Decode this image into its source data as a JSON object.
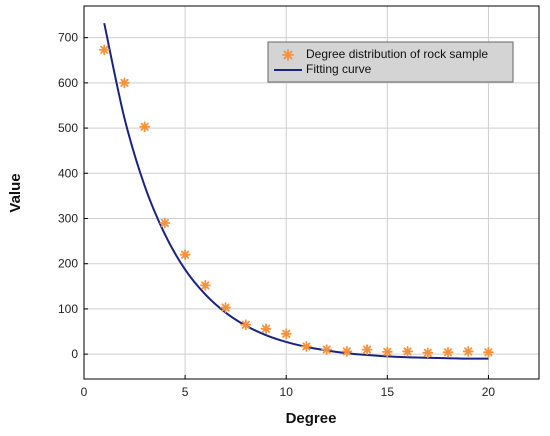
{
  "chart_data": {
    "type": "scatter",
    "xlabel": "Degree",
    "ylabel": "Value",
    "xlim": [
      0,
      22.5
    ],
    "ylim": [
      -55,
      770
    ],
    "xticks": [
      0,
      5,
      10,
      15,
      20
    ],
    "yticks": [
      0,
      100,
      200,
      300,
      400,
      500,
      600,
      700
    ],
    "grid": true,
    "legend_position": "top-right",
    "series": [
      {
        "name": "Degree distribution of rock sample",
        "kind": "scatter",
        "marker": "asterisk",
        "color": "#f5923e",
        "x": [
          1,
          2,
          3,
          4,
          5,
          6,
          7,
          8,
          9,
          10,
          11,
          12,
          13,
          14,
          15,
          16,
          17,
          18,
          19,
          20
        ],
        "y": [
          673,
          600,
          503,
          290,
          220,
          152,
          103,
          65,
          56,
          45,
          17,
          10,
          6,
          10,
          5,
          6,
          3,
          4,
          6,
          4
        ]
      },
      {
        "name": "Fitting curve",
        "kind": "line",
        "color": "#1a237e",
        "x": [
          1,
          2,
          3,
          4,
          5,
          6,
          7,
          8,
          9,
          10,
          11,
          12,
          13,
          14,
          15,
          16,
          17,
          18,
          19,
          20
        ],
        "y": [
          732,
          522,
          372,
          265,
          187,
          132,
          92,
          63,
          42,
          27,
          16,
          8,
          2,
          -2,
          -5,
          -7,
          -8,
          -9,
          -10,
          -10
        ]
      }
    ]
  }
}
